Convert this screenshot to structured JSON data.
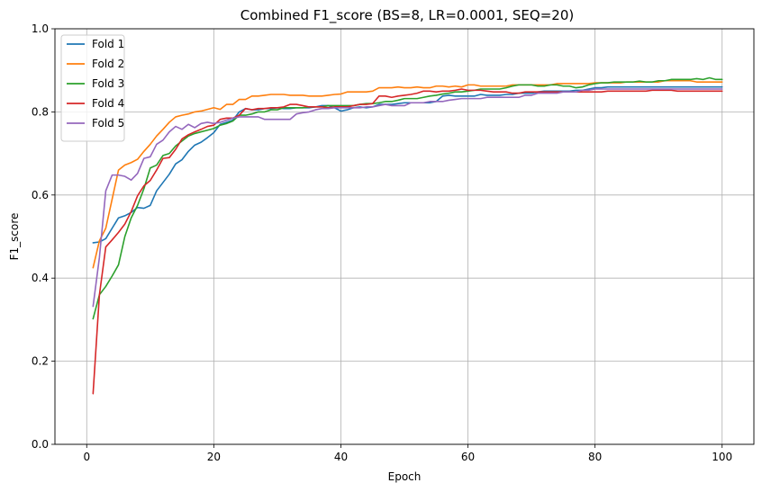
{
  "chart_data": {
    "type": "line",
    "title": "Combined F1_score (BS=8, LR=0.0001, SEQ=20)",
    "xlabel": "Epoch",
    "ylabel": "F1_score",
    "xlim": [
      -5,
      105
    ],
    "ylim": [
      0.0,
      1.0
    ],
    "xticks": [
      0,
      20,
      40,
      60,
      80,
      100
    ],
    "yticks": [
      0.0,
      0.2,
      0.4,
      0.6,
      0.8,
      1.0
    ],
    "xtick_labels": [
      "0",
      "20",
      "40",
      "60",
      "80",
      "100"
    ],
    "ytick_labels": [
      "0.0",
      "0.2",
      "0.4",
      "0.6",
      "0.8",
      "1.0"
    ],
    "grid": true,
    "legend_position": "top-left",
    "colors": [
      "#1f77b4",
      "#ff7f0e",
      "#2ca02c",
      "#d62728",
      "#9467bd"
    ],
    "x_start": 1,
    "series": [
      {
        "name": "Fold 1",
        "values": [
          0.485,
          0.487,
          0.495,
          0.52,
          0.545,
          0.55,
          0.558,
          0.57,
          0.568,
          0.575,
          0.61,
          0.63,
          0.65,
          0.675,
          0.685,
          0.705,
          0.72,
          0.727,
          0.738,
          0.75,
          0.77,
          0.775,
          0.78,
          0.8,
          0.808,
          0.805,
          0.805,
          0.808,
          0.808,
          0.81,
          0.808,
          0.808,
          0.81,
          0.81,
          0.81,
          0.812,
          0.815,
          0.815,
          0.81,
          0.802,
          0.805,
          0.81,
          0.812,
          0.81,
          0.812,
          0.818,
          0.818,
          0.818,
          0.82,
          0.822,
          0.822,
          0.822,
          0.822,
          0.822,
          0.825,
          0.838,
          0.84,
          0.838,
          0.838,
          0.838,
          0.838,
          0.842,
          0.84,
          0.84,
          0.84,
          0.842,
          0.842,
          0.845,
          0.845,
          0.845,
          0.848,
          0.85,
          0.85,
          0.85,
          0.85,
          0.85,
          0.852,
          0.852,
          0.855,
          0.858,
          0.858,
          0.86,
          0.86,
          0.86,
          0.86,
          0.86,
          0.86,
          0.86,
          0.86,
          0.86,
          0.86,
          0.86,
          0.86,
          0.86,
          0.86,
          0.86,
          0.86,
          0.86,
          0.86,
          0.86
        ]
      },
      {
        "name": "Fold 2",
        "values": [
          0.425,
          0.49,
          0.52,
          0.59,
          0.66,
          0.672,
          0.678,
          0.686,
          0.705,
          0.722,
          0.742,
          0.758,
          0.775,
          0.788,
          0.792,
          0.795,
          0.8,
          0.802,
          0.806,
          0.81,
          0.806,
          0.818,
          0.818,
          0.83,
          0.83,
          0.838,
          0.838,
          0.84,
          0.842,
          0.842,
          0.842,
          0.84,
          0.84,
          0.84,
          0.838,
          0.838,
          0.838,
          0.84,
          0.842,
          0.843,
          0.848,
          0.848,
          0.848,
          0.848,
          0.85,
          0.858,
          0.858,
          0.858,
          0.86,
          0.858,
          0.858,
          0.86,
          0.858,
          0.858,
          0.862,
          0.862,
          0.86,
          0.862,
          0.86,
          0.865,
          0.865,
          0.862,
          0.862,
          0.862,
          0.862,
          0.862,
          0.865,
          0.865,
          0.865,
          0.865,
          0.865,
          0.865,
          0.865,
          0.868,
          0.868,
          0.868,
          0.868,
          0.868,
          0.868,
          0.87,
          0.87,
          0.87,
          0.87,
          0.87,
          0.872,
          0.872,
          0.872,
          0.872,
          0.872,
          0.872,
          0.875,
          0.875,
          0.875,
          0.875,
          0.875,
          0.872,
          0.872,
          0.872,
          0.872,
          0.872
        ]
      },
      {
        "name": "Fold 3",
        "values": [
          0.302,
          0.36,
          0.38,
          0.405,
          0.432,
          0.5,
          0.545,
          0.575,
          0.615,
          0.665,
          0.672,
          0.695,
          0.7,
          0.718,
          0.73,
          0.742,
          0.748,
          0.752,
          0.756,
          0.76,
          0.768,
          0.772,
          0.778,
          0.792,
          0.792,
          0.795,
          0.8,
          0.8,
          0.805,
          0.805,
          0.81,
          0.81,
          0.81,
          0.81,
          0.812,
          0.812,
          0.812,
          0.815,
          0.815,
          0.815,
          0.815,
          0.815,
          0.818,
          0.82,
          0.82,
          0.822,
          0.825,
          0.825,
          0.828,
          0.832,
          0.832,
          0.832,
          0.835,
          0.838,
          0.84,
          0.843,
          0.845,
          0.848,
          0.848,
          0.85,
          0.852,
          0.855,
          0.855,
          0.855,
          0.855,
          0.858,
          0.862,
          0.865,
          0.865,
          0.865,
          0.862,
          0.862,
          0.865,
          0.865,
          0.862,
          0.862,
          0.858,
          0.86,
          0.865,
          0.868,
          0.87,
          0.87,
          0.872,
          0.872,
          0.872,
          0.872,
          0.874,
          0.872,
          0.872,
          0.875,
          0.875,
          0.878,
          0.878,
          0.878,
          0.878,
          0.88,
          0.878,
          0.882,
          0.878,
          0.878
        ]
      },
      {
        "name": "Fold 4",
        "values": [
          0.122,
          0.36,
          0.475,
          0.492,
          0.51,
          0.53,
          0.56,
          0.598,
          0.622,
          0.635,
          0.66,
          0.688,
          0.69,
          0.71,
          0.735,
          0.745,
          0.752,
          0.758,
          0.765,
          0.768,
          0.782,
          0.785,
          0.785,
          0.792,
          0.808,
          0.805,
          0.808,
          0.808,
          0.81,
          0.81,
          0.812,
          0.818,
          0.818,
          0.815,
          0.812,
          0.812,
          0.812,
          0.81,
          0.812,
          0.812,
          0.812,
          0.815,
          0.818,
          0.818,
          0.82,
          0.838,
          0.838,
          0.835,
          0.838,
          0.84,
          0.842,
          0.845,
          0.85,
          0.85,
          0.848,
          0.85,
          0.85,
          0.852,
          0.855,
          0.852,
          0.852,
          0.852,
          0.85,
          0.848,
          0.848,
          0.848,
          0.845,
          0.845,
          0.848,
          0.848,
          0.848,
          0.848,
          0.848,
          0.848,
          0.848,
          0.848,
          0.848,
          0.848,
          0.848,
          0.848,
          0.848,
          0.85,
          0.85,
          0.85,
          0.85,
          0.85,
          0.85,
          0.85,
          0.852,
          0.852,
          0.852,
          0.852,
          0.85,
          0.85,
          0.85,
          0.85,
          0.85,
          0.85,
          0.85,
          0.85
        ]
      },
      {
        "name": "Fold 5",
        "values": [
          0.332,
          0.45,
          0.61,
          0.648,
          0.648,
          0.645,
          0.636,
          0.652,
          0.688,
          0.692,
          0.722,
          0.732,
          0.752,
          0.765,
          0.758,
          0.77,
          0.762,
          0.772,
          0.775,
          0.772,
          0.775,
          0.78,
          0.785,
          0.788,
          0.788,
          0.788,
          0.788,
          0.782,
          0.782,
          0.782,
          0.782,
          0.782,
          0.795,
          0.798,
          0.8,
          0.805,
          0.808,
          0.808,
          0.81,
          0.81,
          0.81,
          0.81,
          0.81,
          0.812,
          0.812,
          0.815,
          0.818,
          0.815,
          0.815,
          0.815,
          0.822,
          0.822,
          0.822,
          0.825,
          0.825,
          0.825,
          0.828,
          0.83,
          0.832,
          0.832,
          0.832,
          0.832,
          0.835,
          0.835,
          0.835,
          0.835,
          0.835,
          0.835,
          0.84,
          0.84,
          0.845,
          0.845,
          0.845,
          0.845,
          0.848,
          0.848,
          0.848,
          0.852,
          0.852,
          0.855,
          0.855,
          0.855,
          0.855,
          0.855,
          0.855,
          0.855,
          0.855,
          0.855,
          0.855,
          0.855,
          0.855,
          0.855,
          0.855,
          0.855,
          0.855,
          0.855,
          0.855,
          0.855,
          0.855,
          0.855
        ]
      }
    ]
  }
}
